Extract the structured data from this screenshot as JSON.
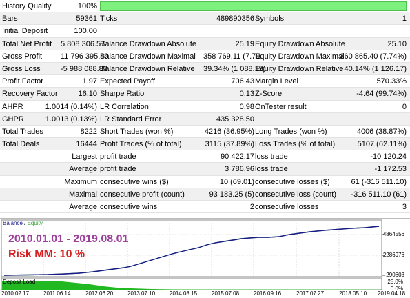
{
  "report": {
    "r1": {
      "history_quality_label": "History Quality",
      "history_quality_value": "100%"
    },
    "r2": {
      "bars_label": "Bars",
      "bars_value": "59361",
      "ticks_label": "Ticks",
      "ticks_value": "489890356",
      "symbols_label": "Symbols",
      "symbols_value": "1"
    },
    "r3": {
      "initial_deposit_label": "Initial Deposit",
      "initial_deposit_value": "100.00"
    },
    "r4": {
      "total_net_profit_label": "Total Net Profit",
      "total_net_profit_value": "5 808 306.57",
      "bal_dd_abs_label": "Balance Drawdown Absolute",
      "bal_dd_abs_value": "25.19",
      "eq_dd_abs_label": "Equity Drawdown Absolute",
      "eq_dd_abs_value": "25.10"
    },
    "r5": {
      "gross_profit_label": "Gross Profit",
      "gross_profit_value": "11 796 395.40",
      "bal_dd_max_label": "Balance Drawdown Maximal",
      "bal_dd_max_value": "358 769.11 (7.70...",
      "eq_dd_max_label": "Equity Drawdown Maximal",
      "eq_dd_max_value": "360 865.40 (7.74%)"
    },
    "r6": {
      "gross_loss_label": "Gross Loss",
      "gross_loss_value": "-5 988 088.83",
      "bal_dd_rel_label": "Balance Drawdown Relative",
      "bal_dd_rel_value": "39.34% (1 088.19)",
      "eq_dd_rel_label": "Equity Drawdown Relative",
      "eq_dd_rel_value": "40.14% (1 126.17)"
    },
    "r7": {
      "profit_factor_label": "Profit Factor",
      "profit_factor_value": "1.97",
      "expected_payoff_label": "Expected Payoff",
      "expected_payoff_value": "706.43",
      "margin_level_label": "Margin Level",
      "margin_level_value": "570.33%"
    },
    "r8": {
      "recovery_factor_label": "Recovery Factor",
      "recovery_factor_value": "16.10",
      "sharpe_ratio_label": "Sharpe Ratio",
      "sharpe_ratio_value": "0.13",
      "z_score_label": "Z-Score",
      "z_score_value": "-4.64 (99.74%)"
    },
    "r9": {
      "ahpr_label": "AHPR",
      "ahpr_value": "1.0014 (0.14%)",
      "lr_correlation_label": "LR Correlation",
      "lr_correlation_value": "0.98",
      "ontester_label": "OnTester result",
      "ontester_value": "0"
    },
    "r10": {
      "ghpr_label": "GHPR",
      "ghpr_value": "1.0013 (0.13%)",
      "lr_std_error_label": "LR Standard Error",
      "lr_std_error_value": "435 328.50"
    },
    "r11": {
      "total_trades_label": "Total Trades",
      "total_trades_value": "8222",
      "short_trades_label": "Short Trades (won %)",
      "short_trades_value": "4216 (36.95%)",
      "long_trades_label": "Long Trades (won %)",
      "long_trades_value": "4006 (38.87%)"
    },
    "r12": {
      "total_deals_label": "Total Deals",
      "total_deals_value": "16444",
      "profit_trades_label": "Profit Trades (% of total)",
      "profit_trades_value": "3115 (37.89%)",
      "loss_trades_label": "Loss Trades (% of total)",
      "loss_trades_value": "5107 (62.11%)"
    },
    "r13": {
      "largest_label": "Largest",
      "largest_profit_label": "profit trade",
      "largest_profit_value": "90 422.17",
      "largest_loss_label": "loss trade",
      "largest_loss_value": "-10 120.24"
    },
    "r14": {
      "average_label": "Average",
      "average_profit_label": "profit trade",
      "average_profit_value": "3 786.96",
      "average_loss_label": "loss trade",
      "average_loss_value": "-1 172.53"
    },
    "r15": {
      "maximum_label": "Maximum",
      "max_cons_wins_label": "consecutive wins ($)",
      "max_cons_wins_value": "10 (69.01)",
      "max_cons_losses_label": "consecutive losses ($)",
      "max_cons_losses_value": "61 (-316 511.10)"
    },
    "r16": {
      "maximal_label": "Maximal",
      "maximal_cons_profit_label": "consecutive profit (count)",
      "maximal_cons_profit_value": "93 183.25 (5)",
      "maximal_cons_loss_label": "consecutive loss (count)",
      "maximal_cons_loss_value": "-316 511.10 (61)"
    },
    "r17": {
      "average_label": "Average",
      "avg_cons_wins_label": "consecutive wins",
      "avg_cons_wins_value": "2",
      "avg_cons_losses_label": "consecutive losses",
      "avg_cons_losses_value": "3"
    }
  },
  "chart": {
    "legend_balance": "Balance",
    "legend_separator": " / ",
    "legend_equity": "Equity",
    "overlay_period": "2010.01.01 - 2019.08.01",
    "overlay_risk": "Risk MM: 10 %",
    "y_ticks": [
      "4864556",
      "2286976",
      "-290603"
    ],
    "deposit_load_label": "Deposit Load",
    "load_ticks": [
      "25.0%",
      "0.0%"
    ],
    "x_ticks": [
      "2010.02.17",
      "2011.06.14",
      "2012.06.20",
      "2013.07.10",
      "2014.08.15",
      "2015.07.08",
      "2016.09.16",
      "2017.07.27",
      "2018.05.10",
      "2019.04.18"
    ],
    "colors": {
      "balance": "#1a1a8c",
      "equity": "#2e9e2e",
      "load": "#22b822"
    }
  }
}
